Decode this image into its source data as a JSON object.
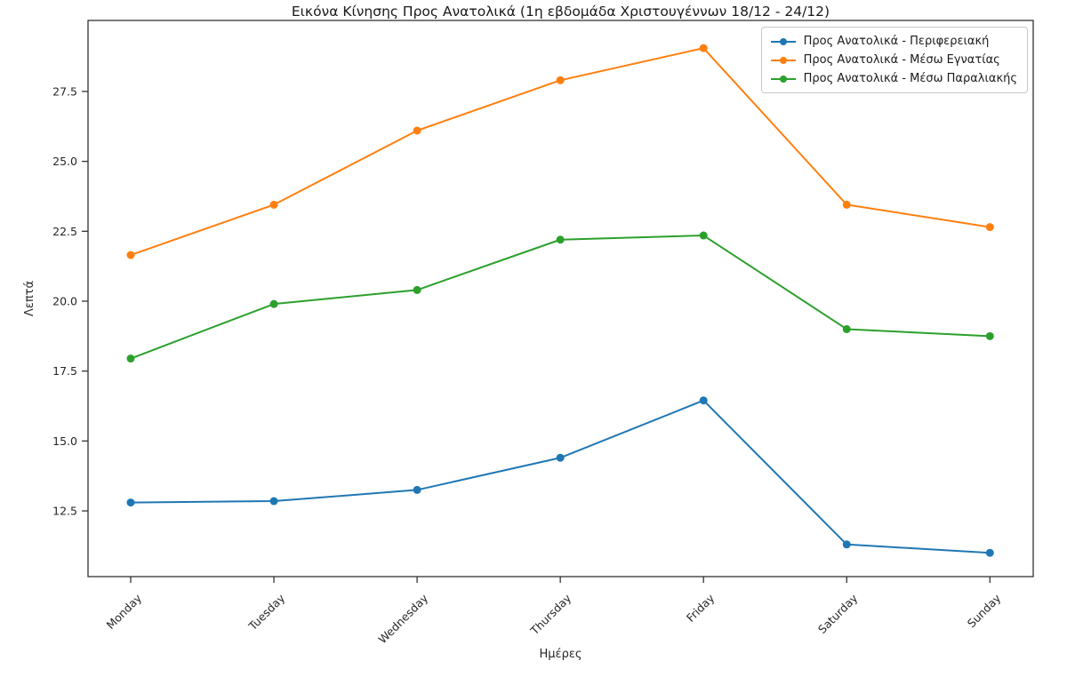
{
  "chart_data": {
    "type": "line",
    "title": "Εικόνα Κίνησης Προς Ανατολικά (1η εβδομάδα Χριστουγέννων 18/12 - 24/12)",
    "xlabel": "Ημέρες",
    "ylabel": "Λεπτά",
    "categories": [
      "Monday",
      "Tuesday",
      "Wednesday",
      "Thursday",
      "Friday",
      "Saturday",
      "Sunday"
    ],
    "series": [
      {
        "name": "Προς Ανατολικά - Περιφερειακή",
        "color": "#1f77b4",
        "values": [
          12.8,
          12.85,
          13.25,
          14.4,
          16.45,
          11.3,
          11.0
        ]
      },
      {
        "name": "Προς Ανατολικά - Μέσω Εγνατίας",
        "color": "#ff7f0e",
        "values": [
          21.65,
          23.45,
          26.1,
          27.9,
          29.05,
          23.45,
          22.65
        ]
      },
      {
        "name": "Προς Ανατολικά - Μέσω Παραλιακής",
        "color": "#2ca02c",
        "values": [
          17.95,
          19.9,
          20.4,
          22.2,
          22.35,
          19.0,
          18.75
        ]
      }
    ],
    "yticks": [
      12.5,
      15.0,
      17.5,
      20.0,
      22.5,
      25.0,
      27.5
    ],
    "ylim": [
      10.15,
      30.04
    ],
    "grid": false,
    "legend_position": "upper right",
    "marker": "o",
    "axis_color": "#333333",
    "text_color": "#262626"
  }
}
